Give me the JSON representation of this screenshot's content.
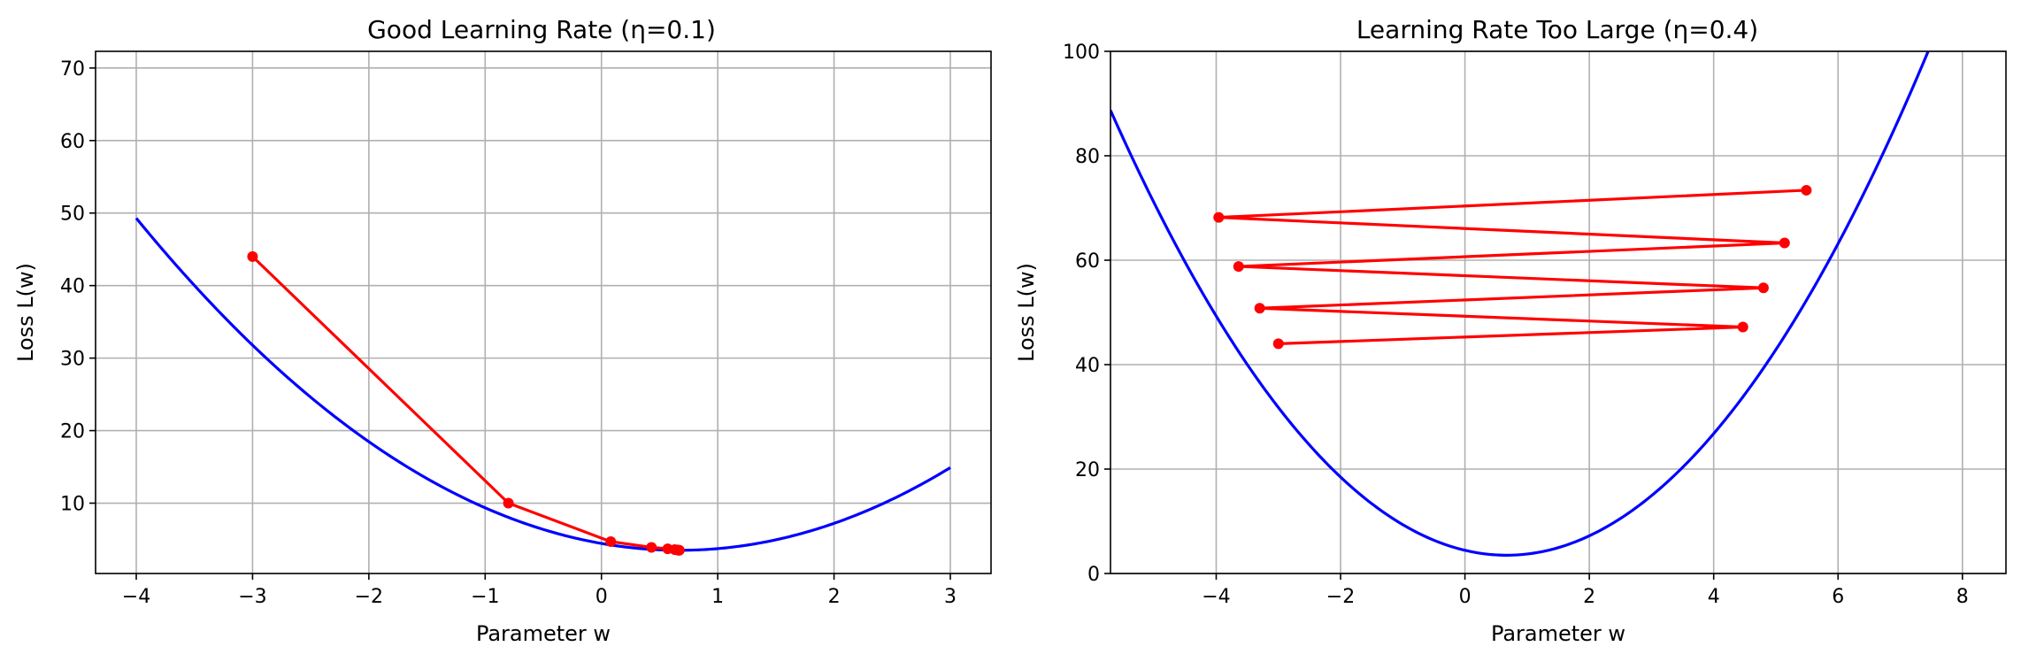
{
  "chart_data": [
    {
      "type": "line",
      "title": "Good Learning Rate (η=0.1)",
      "xlabel": "Parameter w",
      "ylabel": "Loss L(w)",
      "xlim": [
        -4.35,
        3.35
      ],
      "ylim": [
        0.3,
        72.3
      ],
      "xticks": [
        -4,
        -3,
        -2,
        -1,
        0,
        1,
        2,
        3
      ],
      "xtick_labels": [
        "−4",
        "−3",
        "−2",
        "−1",
        "0",
        "1",
        "2",
        "3"
      ],
      "yticks": [
        10,
        20,
        30,
        40,
        50,
        60,
        70
      ],
      "ytick_labels": [
        "10",
        "20",
        "30",
        "40",
        "50",
        "60",
        "70"
      ],
      "grid": true,
      "curve": {
        "function": "3.5 + 2.1*(w - 0.67)^2",
        "x_range": [
          -4,
          3
        ],
        "color": "#0000ff"
      },
      "series": [
        {
          "color": "#ff0000",
          "x": [
            -3.0,
            -0.8,
            0.08,
            0.43,
            0.57,
            0.63,
            0.65,
            0.66,
            0.665,
            0.67
          ],
          "y": [
            44.0,
            10.0,
            4.7,
            3.9,
            3.7,
            3.6,
            3.55,
            3.52,
            3.51,
            3.5
          ]
        }
      ]
    },
    {
      "type": "line",
      "title": "Learning Rate Too Large (η=0.4)",
      "xlabel": "Parameter w",
      "ylabel": "Loss L(w)",
      "xlim": [
        -5.7,
        8.7
      ],
      "ylim": [
        0,
        100
      ],
      "xticks": [
        -4,
        -2,
        0,
        2,
        4,
        6,
        8
      ],
      "xtick_labels": [
        "−4",
        "−2",
        "0",
        "2",
        "4",
        "6",
        "8"
      ],
      "yticks": [
        0,
        20,
        40,
        60,
        80,
        100
      ],
      "ytick_labels": [
        "0",
        "20",
        "40",
        "60",
        "80",
        "100"
      ],
      "grid": true,
      "curve": {
        "function": "3.5 + 2.1*(w - 0.67)^2",
        "x_range": [
          -5.7,
          8.7
        ],
        "color": "#0000ff"
      },
      "series": [
        {
          "color": "#ff0000",
          "x": [
            -3.0,
            4.47,
            -3.3,
            4.8,
            -3.64,
            5.14,
            -3.96,
            5.49
          ],
          "y": [
            44.0,
            47.2,
            50.8,
            54.7,
            58.8,
            63.3,
            68.2,
            73.4
          ]
        }
      ]
    }
  ]
}
